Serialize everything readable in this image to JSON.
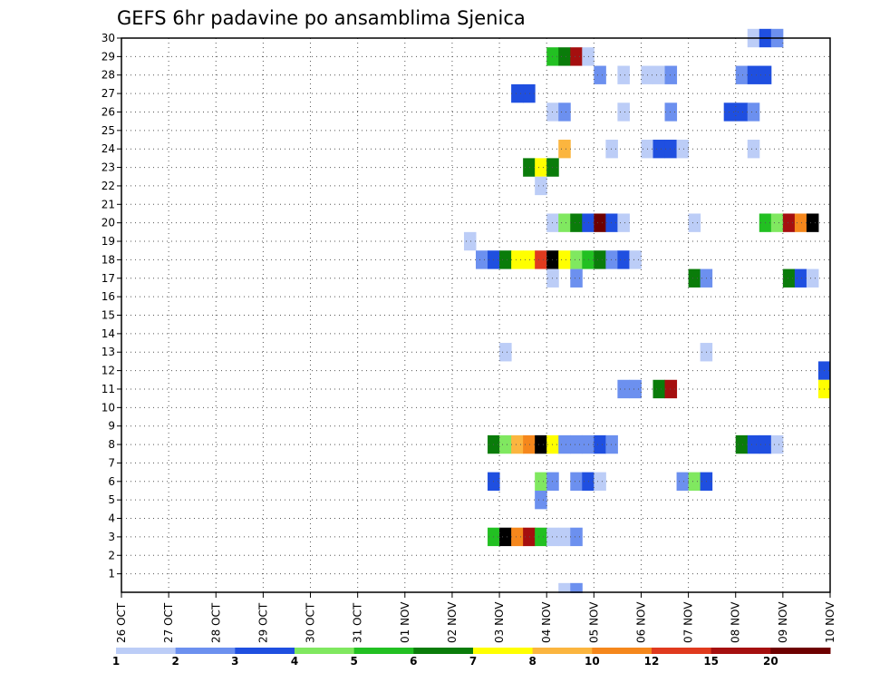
{
  "chart_data": {
    "type": "heatmap",
    "title": "GEFS 6hr padavine po ansamblima Sjenica",
    "x_tick_labels": [
      "26 OCT",
      "27 OCT",
      "28 OCT",
      "29 OCT",
      "30 OCT",
      "31 OCT",
      "01 NOV",
      "02 NOV",
      "03 NOV",
      "04 NOV",
      "05 NOV",
      "06 NOV",
      "07 NOV",
      "08 NOV",
      "09 NOV",
      "10 NOV"
    ],
    "y_tick_labels": [
      "1",
      "2",
      "3",
      "4",
      "5",
      "6",
      "7",
      "8",
      "9",
      "10",
      "11",
      "12",
      "13",
      "14",
      "15",
      "16",
      "17",
      "18",
      "19",
      "20",
      "21",
      "22",
      "23",
      "24",
      "25",
      "26",
      "27",
      "28",
      "29",
      "30"
    ],
    "grid": true,
    "time_step_hours": 6,
    "legend": {
      "position": "bottom",
      "labels": [
        "1",
        "2",
        "3",
        "4",
        "5",
        "6",
        "7",
        "8",
        "10",
        "12",
        "15",
        "20"
      ],
      "colors": [
        "#bccdf7",
        "#6c90ef",
        "#1f4fe0",
        "#80e860",
        "#22c022",
        "#0a7c0a",
        "#ffff00",
        "#fbb53f",
        "#f5871c",
        "#e03a1e",
        "#a50f0f",
        "#6e0000"
      ]
    },
    "cells": [
      [
        30,
        13.25,
        1
      ],
      [
        30,
        13.5,
        3
      ],
      [
        30,
        13.75,
        2
      ],
      [
        29,
        9.0,
        5
      ],
      [
        29,
        9.25,
        6
      ],
      [
        29,
        9.5,
        11
      ],
      [
        29,
        9.75,
        1
      ],
      [
        28,
        10.0,
        2
      ],
      [
        28,
        10.5,
        1
      ],
      [
        28,
        11.0,
        1
      ],
      [
        28,
        11.25,
        1
      ],
      [
        28,
        11.5,
        2
      ],
      [
        28,
        13.0,
        2
      ],
      [
        28,
        13.25,
        3
      ],
      [
        28,
        13.5,
        3
      ],
      [
        27,
        8.25,
        3
      ],
      [
        27,
        8.5,
        3
      ],
      [
        26,
        9.0,
        1
      ],
      [
        26,
        9.25,
        2
      ],
      [
        26,
        10.5,
        1
      ],
      [
        26,
        11.5,
        2
      ],
      [
        26,
        12.75,
        3
      ],
      [
        26,
        13.0,
        3
      ],
      [
        26,
        13.25,
        2
      ],
      [
        24,
        9.25,
        8
      ],
      [
        24,
        10.25,
        1
      ],
      [
        24,
        11.0,
        1
      ],
      [
        24,
        11.25,
        3
      ],
      [
        24,
        11.5,
        3
      ],
      [
        24,
        11.75,
        1
      ],
      [
        24,
        13.25,
        1
      ],
      [
        23,
        8.5,
        6
      ],
      [
        23,
        8.75,
        7
      ],
      [
        23,
        9.0,
        6
      ],
      [
        22,
        8.75,
        1
      ],
      [
        20,
        9.0,
        1
      ],
      [
        20,
        9.25,
        4
      ],
      [
        20,
        9.5,
        6
      ],
      [
        20,
        9.75,
        3
      ],
      [
        20,
        10.0,
        12
      ],
      [
        20,
        10.25,
        3
      ],
      [
        20,
        10.5,
        1
      ],
      [
        20,
        12.0,
        1
      ],
      [
        20,
        13.5,
        5
      ],
      [
        20,
        13.75,
        4
      ],
      [
        20,
        14.0,
        11
      ],
      [
        20,
        14.25,
        9
      ],
      [
        20,
        14.5,
        13
      ],
      [
        19,
        7.25,
        1
      ],
      [
        18,
        7.5,
        2
      ],
      [
        18,
        7.75,
        3
      ],
      [
        18,
        8.0,
        6
      ],
      [
        18,
        8.25,
        7
      ],
      [
        18,
        8.5,
        7
      ],
      [
        18,
        8.75,
        10
      ],
      [
        18,
        9.0,
        14
      ],
      [
        18,
        9.25,
        7
      ],
      [
        18,
        9.5,
        4
      ],
      [
        18,
        9.75,
        5
      ],
      [
        18,
        10.0,
        6
      ],
      [
        18,
        10.25,
        2
      ],
      [
        18,
        10.5,
        3
      ],
      [
        18,
        10.75,
        1
      ],
      [
        17,
        9.0,
        1
      ],
      [
        17,
        9.5,
        2
      ],
      [
        17,
        12.0,
        6
      ],
      [
        17,
        12.25,
        2
      ],
      [
        17,
        14.0,
        6
      ],
      [
        17,
        14.25,
        3
      ],
      [
        17,
        14.5,
        1
      ],
      [
        13,
        8.0,
        1
      ],
      [
        13,
        12.25,
        1
      ],
      [
        12,
        14.75,
        3
      ],
      [
        11,
        10.5,
        2
      ],
      [
        11,
        10.75,
        2
      ],
      [
        11,
        11.25,
        6
      ],
      [
        11,
        11.5,
        11
      ],
      [
        11,
        14.75,
        7
      ],
      [
        8,
        7.75,
        6
      ],
      [
        8,
        8.0,
        4
      ],
      [
        8,
        8.25,
        8
      ],
      [
        8,
        8.5,
        9
      ],
      [
        8,
        8.75,
        13
      ],
      [
        8,
        9.0,
        7
      ],
      [
        8,
        9.25,
        2
      ],
      [
        8,
        9.5,
        2
      ],
      [
        8,
        9.75,
        2
      ],
      [
        8,
        10.0,
        3
      ],
      [
        8,
        10.25,
        2
      ],
      [
        8,
        13.0,
        6
      ],
      [
        8,
        13.25,
        3
      ],
      [
        8,
        13.5,
        3
      ],
      [
        8,
        13.75,
        1
      ],
      [
        6,
        7.75,
        3
      ],
      [
        6,
        8.75,
        4
      ],
      [
        6,
        9.0,
        2
      ],
      [
        6,
        9.5,
        2
      ],
      [
        6,
        9.75,
        3
      ],
      [
        6,
        10.0,
        1
      ],
      [
        6,
        11.75,
        2
      ],
      [
        6,
        12.0,
        4
      ],
      [
        6,
        12.25,
        3
      ],
      [
        5,
        8.75,
        2
      ],
      [
        3,
        7.75,
        5
      ],
      [
        3,
        8.0,
        14
      ],
      [
        3,
        8.25,
        9
      ],
      [
        3,
        8.5,
        11
      ],
      [
        3,
        8.75,
        5
      ],
      [
        3,
        9.0,
        1
      ],
      [
        3,
        9.25,
        1
      ],
      [
        3,
        9.5,
        2
      ],
      [
        0,
        9.25,
        1
      ],
      [
        0,
        9.5,
        2
      ]
    ]
  }
}
